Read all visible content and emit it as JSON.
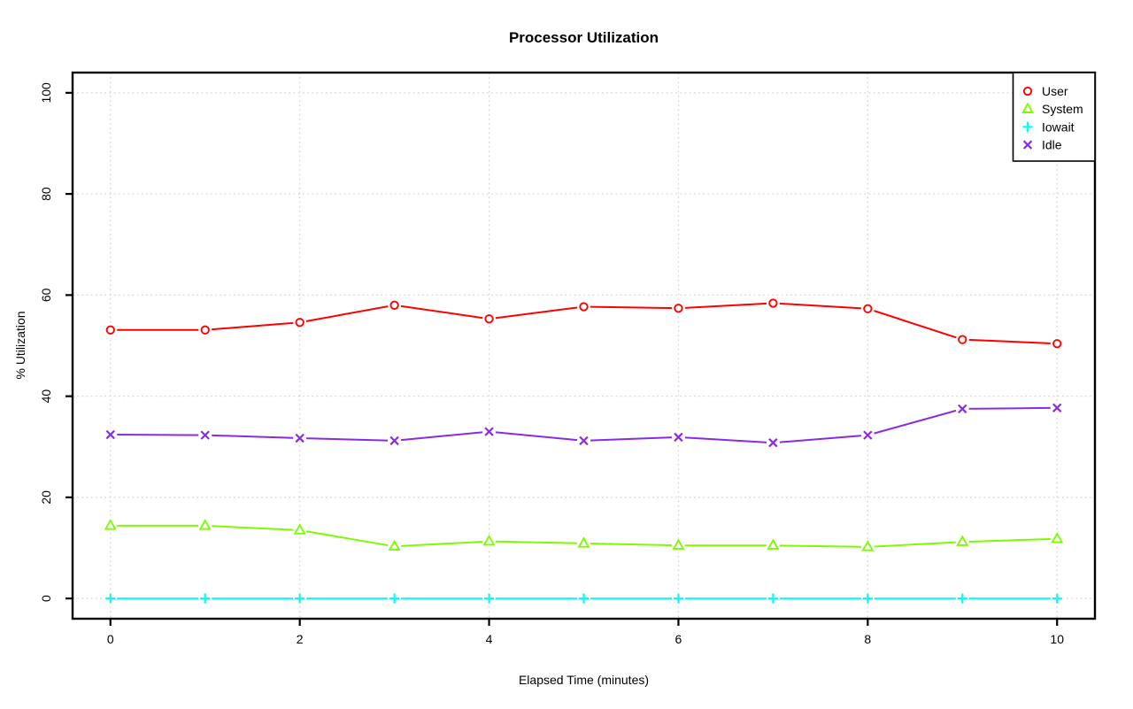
{
  "page": {
    "background_color": "#ffffff",
    "text_color": "#000000"
  },
  "chart_data": {
    "type": "line",
    "title": "Processor Utilization",
    "xlabel": "Elapsed Time (minutes)",
    "ylabel": "% Utilization",
    "x": [
      0,
      1,
      2,
      3,
      4,
      5,
      6,
      7,
      8,
      9,
      10
    ],
    "xticks": [
      0,
      2,
      4,
      6,
      8,
      10
    ],
    "yticks": [
      0,
      20,
      40,
      60,
      80,
      100
    ],
    "xlim": [
      -0.4,
      10.4
    ],
    "ylim": [
      -4,
      104
    ],
    "grid": true,
    "grid_style": "dotted",
    "grid_color": "#d3d3d3",
    "legend_position": "top-right",
    "series": [
      {
        "name": "User",
        "color": "#ff0000",
        "marker": "circle",
        "values": [
          53.1,
          53.1,
          54.6,
          58.0,
          55.3,
          57.7,
          57.4,
          58.4,
          57.3,
          51.2,
          50.4
        ]
      },
      {
        "name": "System",
        "color": "#7cfc00",
        "marker": "triangle",
        "values": [
          14.4,
          14.4,
          13.5,
          10.3,
          11.3,
          10.9,
          10.5,
          10.5,
          10.2,
          11.2,
          11.8
        ]
      },
      {
        "name": "Iowait",
        "color": "#00ffff",
        "marker": "plus",
        "values": [
          0,
          0,
          0,
          0,
          0,
          0,
          0,
          0,
          0,
          0,
          0
        ]
      },
      {
        "name": "Idle",
        "color": "#8a2be2",
        "marker": "x",
        "values": [
          32.4,
          32.3,
          31.7,
          31.2,
          33.0,
          31.2,
          31.9,
          30.8,
          32.3,
          37.5,
          37.7
        ]
      }
    ]
  }
}
